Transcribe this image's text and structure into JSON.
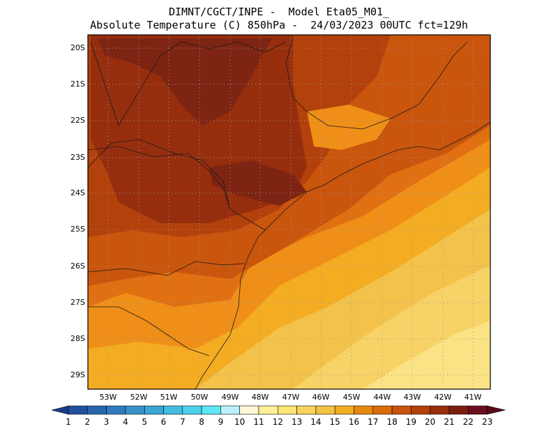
{
  "header": {
    "line1": "DIMNT/CGCT/INPE -  Model Eta05_M01_",
    "line2": "Absolute Temperature (C) 850hPa -  24/03/2023 00UTC fct=129h"
  },
  "axes": {
    "lat_labels": [
      "20S",
      "21S",
      "22S",
      "23S",
      "24S",
      "25S",
      "26S",
      "27S",
      "28S",
      "29S"
    ],
    "lon_labels": [
      "53W",
      "52W",
      "51W",
      "50W",
      "49W",
      "48W",
      "47W",
      "46W",
      "45W",
      "44W",
      "43W",
      "42W",
      "41W"
    ]
  },
  "colorbar": {
    "labels": [
      "1",
      "2",
      "3",
      "4",
      "5",
      "6",
      "7",
      "8",
      "9",
      "10",
      "11",
      "12",
      "13",
      "14",
      "15",
      "16",
      "17",
      "18",
      "19",
      "20",
      "21",
      "22",
      "23"
    ],
    "colors": [
      "#1a3b8c",
      "#20519e",
      "#2766ad",
      "#2f7bbd",
      "#3791c8",
      "#3ca6d4",
      "#42bde1",
      "#4ed2ec",
      "#5ee8f8",
      "#b9f0fb",
      "#fff7d6",
      "#fff09a",
      "#ffe57a",
      "#f9d45c",
      "#f3c242",
      "#efad22",
      "#e58a10",
      "#db6c0a",
      "#c9520c",
      "#b4400c",
      "#972f0d",
      "#7b1e10",
      "#6a0f1e",
      "#5a0a18"
    ]
  },
  "map_regions": {
    "colors": {
      "t21": "#7e2412",
      "t20": "#962e0e",
      "t19": "#b2410c",
      "t18": "#ca550d",
      "t17": "#e07012",
      "t16": "#ef8f18",
      "t15": "#f4ac22",
      "t14": "#f3c24a",
      "t13": "#f7d266",
      "t12": "#fbe284"
    }
  }
}
